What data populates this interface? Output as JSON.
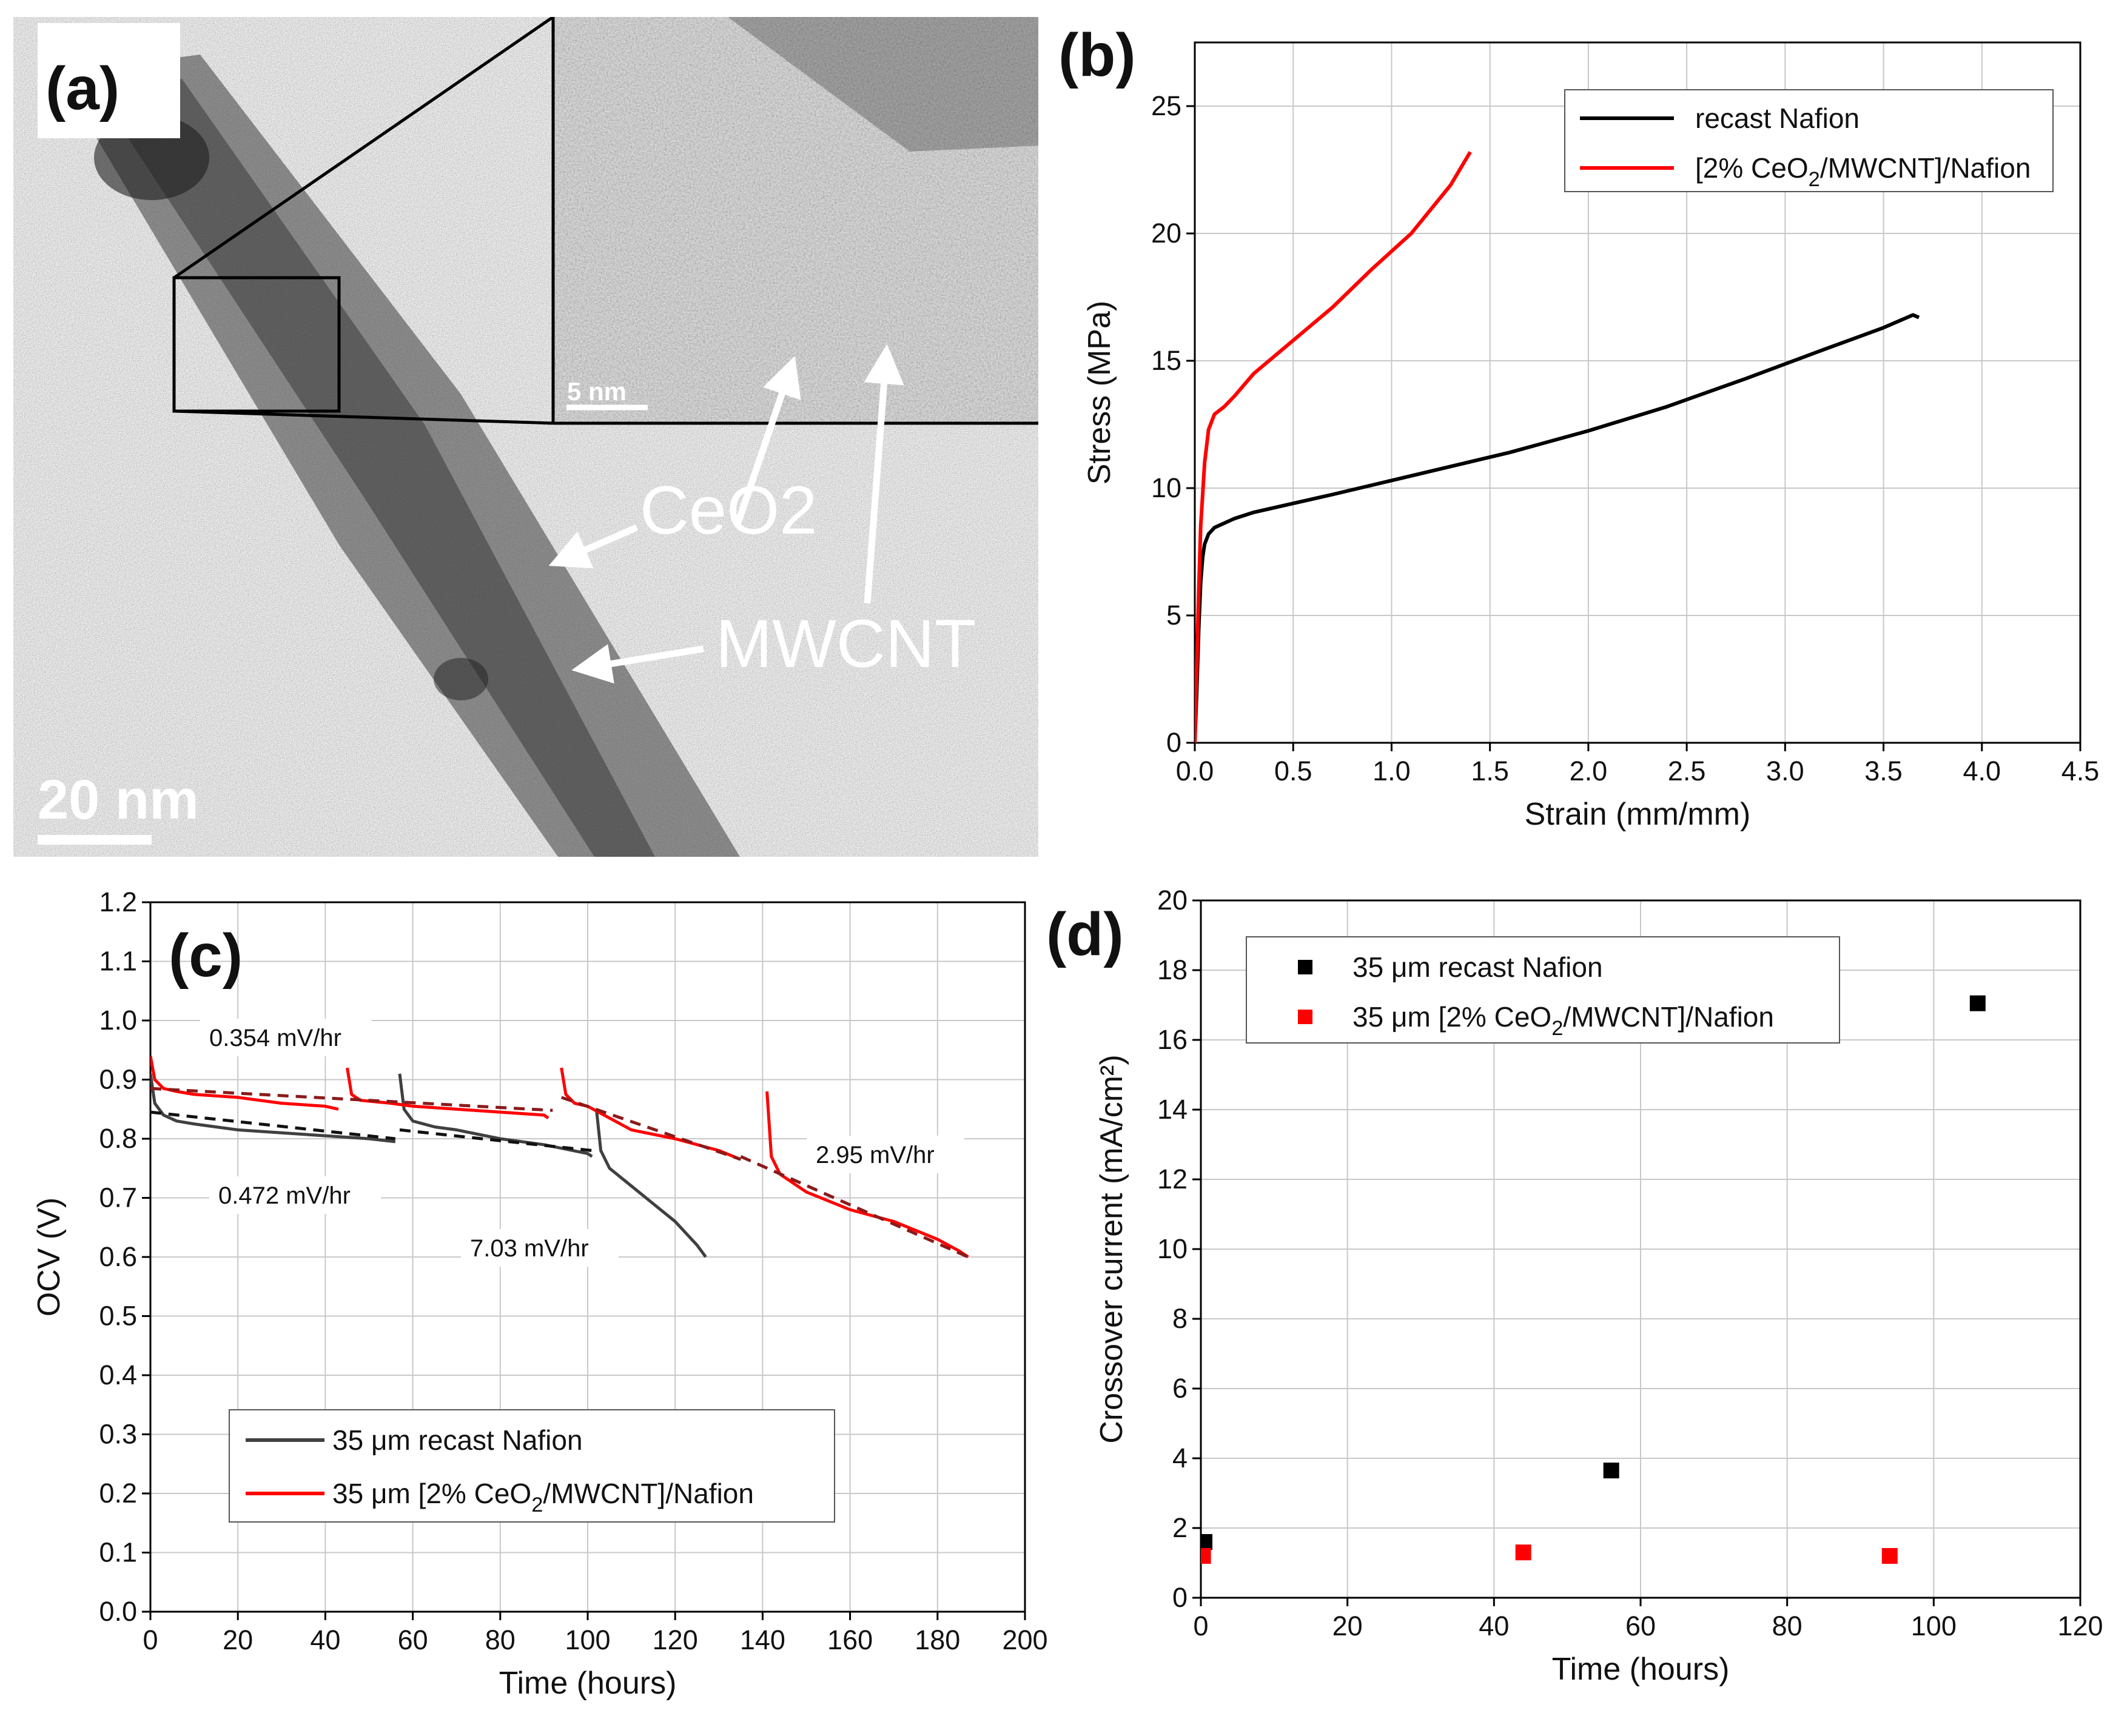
{
  "figure": {
    "panels": [
      "(a)",
      "(b)",
      "(c)",
      "(d)"
    ]
  },
  "tem_panel": {
    "label": "(a)",
    "scale_bar_main": "20 nm",
    "scale_bar_inset": "5 nm",
    "annotation_ceo2": "CeO2",
    "annotation_mwcnt": "MWCNT"
  },
  "chart_data": [
    {
      "panel": "(b)",
      "type": "line",
      "xlabel": "Strain (mm/mm)",
      "ylabel": "Stress (MPa)",
      "xlim": [
        0,
        4.5
      ],
      "ylim": [
        0,
        27.5
      ],
      "xticks": [
        "0.0",
        "0.5",
        "1.0",
        "1.5",
        "2.0",
        "2.5",
        "3.0",
        "3.5",
        "4.0",
        "4.5"
      ],
      "yticks": [
        "0",
        "5",
        "10",
        "15",
        "20",
        "25"
      ],
      "legend_position": "top-right",
      "series": [
        {
          "name": "recast Nafion",
          "color": "#000000",
          "x": [
            0,
            0.01,
            0.02,
            0.03,
            0.04,
            0.05,
            0.07,
            0.1,
            0.2,
            0.3,
            0.5,
            0.7,
            1.0,
            1.3,
            1.6,
            2.0,
            2.4,
            2.8,
            3.2,
            3.5,
            3.65,
            3.68
          ],
          "y": [
            0,
            2.0,
            4.5,
            6.3,
            7.3,
            7.8,
            8.2,
            8.45,
            8.8,
            9.05,
            9.4,
            9.75,
            10.3,
            10.85,
            11.4,
            12.25,
            13.2,
            14.3,
            15.45,
            16.3,
            16.8,
            16.7
          ]
        },
        {
          "name": "[2% CeO2/MWCNT]/Nafion",
          "color": "#ff0000",
          "x": [
            0,
            0.01,
            0.02,
            0.03,
            0.05,
            0.07,
            0.1,
            0.15,
            0.2,
            0.3,
            0.5,
            0.7,
            0.9,
            1.1,
            1.3,
            1.4
          ],
          "y": [
            0,
            3.0,
            6.0,
            8.5,
            11.0,
            12.3,
            12.9,
            13.2,
            13.6,
            14.5,
            15.8,
            17.1,
            18.6,
            20.0,
            21.9,
            23.2
          ]
        }
      ]
    },
    {
      "panel": "(c)",
      "type": "line",
      "xlabel": "Time (hours)",
      "ylabel": "OCV (V)",
      "xlim": [
        0,
        200
      ],
      "ylim": [
        0.0,
        1.2
      ],
      "xticks": [
        "0",
        "20",
        "40",
        "60",
        "80",
        "100",
        "120",
        "140",
        "160",
        "180",
        "200"
      ],
      "yticks": [
        "0.0",
        "0.1",
        "0.2",
        "0.3",
        "0.4",
        "0.5",
        "0.6",
        "0.7",
        "0.8",
        "0.9",
        "1.0",
        "1.1",
        "1.2"
      ],
      "legend_position": "bottom-left",
      "annotations": [
        "0.354 mV/hr",
        "0.472 mV/hr",
        "7.03 mV/hr",
        "2.95 mV/hr"
      ],
      "series": [
        {
          "name": "35 μm recast Nafion",
          "color": "#404040",
          "segments": [
            {
              "x": [
                0,
                1,
                3,
                6,
                10,
                15,
                20,
                30,
                40,
                50,
                56
              ],
              "y": [
                0.91,
                0.86,
                0.84,
                0.83,
                0.825,
                0.82,
                0.815,
                0.81,
                0.805,
                0.8,
                0.795
              ]
            },
            {
              "x": [
                57,
                58,
                60,
                65,
                70,
                80,
                90,
                100,
                101
              ],
              "y": [
                0.91,
                0.85,
                0.83,
                0.82,
                0.815,
                0.8,
                0.79,
                0.775,
                0.77
              ]
            },
            {
              "x": [
                102,
                103,
                105,
                110,
                115,
                120,
                125,
                127
              ],
              "y": [
                0.85,
                0.78,
                0.75,
                0.72,
                0.69,
                0.66,
                0.62,
                0.6
              ]
            }
          ]
        },
        {
          "name": "35 μm [2% CeO2/MWCNT]/Nafion",
          "color": "#ff0000",
          "segments": [
            {
              "x": [
                0,
                1,
                3,
                6,
                10,
                20,
                30,
                40,
                43
              ],
              "y": [
                0.94,
                0.9,
                0.885,
                0.88,
                0.875,
                0.87,
                0.86,
                0.855,
                0.85
              ]
            },
            {
              "x": [
                45,
                46,
                48,
                55,
                60,
                70,
                80,
                90,
                91
              ],
              "y": [
                0.92,
                0.875,
                0.865,
                0.86,
                0.855,
                0.85,
                0.845,
                0.84,
                0.835
              ]
            },
            {
              "x": [
                94,
                95,
                97,
                100,
                105,
                110,
                120,
                130,
                135
              ],
              "y": [
                0.92,
                0.875,
                0.86,
                0.855,
                0.835,
                0.815,
                0.8,
                0.78,
                0.765
              ]
            },
            {
              "x": [
                141,
                142,
                144,
                150,
                160,
                170,
                180,
                185,
                187
              ],
              "y": [
                0.88,
                0.77,
                0.74,
                0.71,
                0.68,
                0.66,
                0.63,
                0.61,
                0.6
              ]
            }
          ]
        }
      ],
      "fits": [
        {
          "color": "#8b1a1a",
          "x": [
            0,
            92
          ],
          "y": [
            0.885,
            0.848
          ]
        },
        {
          "color": "#111111",
          "x": [
            0,
            56
          ],
          "y": [
            0.845,
            0.8
          ]
        },
        {
          "color": "#111111",
          "x": [
            57,
            101
          ],
          "y": [
            0.815,
            0.78
          ]
        },
        {
          "color": "#8b1a1a",
          "x": [
            94,
            135
          ],
          "y": [
            0.87,
            0.765
          ]
        },
        {
          "color": "#8b1a1a",
          "x": [
            135,
            187
          ],
          "y": [
            0.77,
            0.6
          ]
        }
      ]
    },
    {
      "panel": "(d)",
      "type": "scatter",
      "xlabel": "Time (hours)",
      "ylabel": "Crossover current (mA/cm²)",
      "xlim": [
        0,
        120
      ],
      "ylim": [
        0,
        20
      ],
      "xticks": [
        "0",
        "20",
        "40",
        "60",
        "80",
        "100",
        "120"
      ],
      "yticks": [
        "0",
        "2",
        "4",
        "6",
        "8",
        "10",
        "12",
        "14",
        "16",
        "18",
        "20"
      ],
      "legend_position": "top-left",
      "series": [
        {
          "name": "35 μm recast Nafion",
          "color": "#000000",
          "x": [
            0.5,
            56,
            106
          ],
          "y": [
            1.6,
            3.65,
            17.05
          ]
        },
        {
          "name": "35 μm [2% CeO2/MWCNT]/Nafion",
          "color": "#ff0000",
          "x": [
            0.3,
            44,
            94
          ],
          "y": [
            1.2,
            1.3,
            1.2
          ]
        }
      ]
    }
  ]
}
